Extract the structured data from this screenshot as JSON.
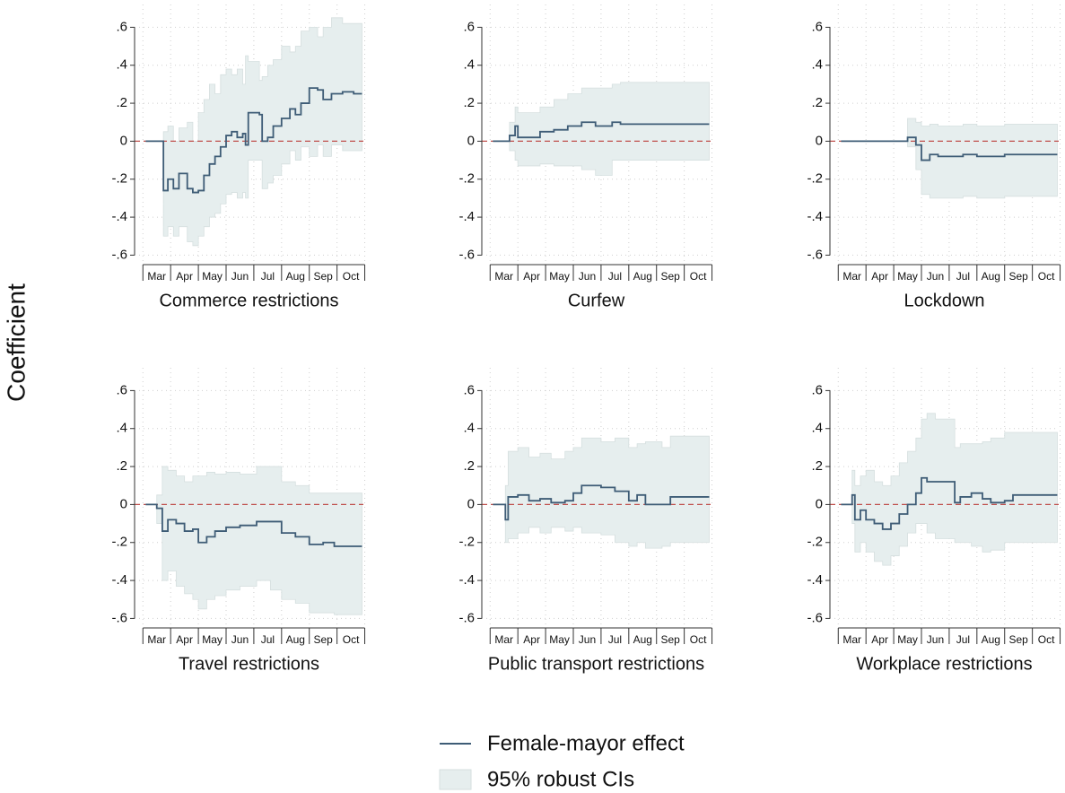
{
  "ylabel": "Coefficient",
  "chart_data": [
    {
      "type": "line",
      "title": "Commerce restrictions",
      "drawstyle": "steps-post",
      "grid": true,
      "hline": 0,
      "hline_color": "#c0504d",
      "xlim": [
        -0.3,
        7.95
      ],
      "ylim": [
        -0.65,
        0.72
      ],
      "xminorticks": [
        0,
        1,
        2,
        3,
        4,
        5,
        6,
        7,
        8
      ],
      "xticks": [
        {
          "value": 0.5,
          "label": "Mar"
        },
        {
          "value": 1.5,
          "label": "Apr"
        },
        {
          "value": 2.5,
          "label": "May"
        },
        {
          "value": 3.5,
          "label": "Jun"
        },
        {
          "value": 4.5,
          "label": "Jul"
        },
        {
          "value": 5.5,
          "label": "Aug"
        },
        {
          "value": 6.5,
          "label": "Sep"
        },
        {
          "value": 7.5,
          "label": "Oct"
        }
      ],
      "yticks": [
        {
          "value": 0.6,
          "label": ".6"
        },
        {
          "value": 0.4,
          "label": ".4"
        },
        {
          "value": 0.2,
          "label": ".2"
        },
        0,
        {
          "value": -0.2,
          "label": "-.2"
        },
        {
          "value": -0.4,
          "label": "-.4"
        },
        {
          "value": -0.6,
          "label": "-.6"
        }
      ],
      "x": [
        0.1,
        0.6,
        0.74,
        0.9,
        1.1,
        1.3,
        1.6,
        1.8,
        2.0,
        2.2,
        2.4,
        2.6,
        2.8,
        3.0,
        3.2,
        3.4,
        3.6,
        3.7,
        3.8,
        4.2,
        4.3,
        4.5,
        4.7,
        5.0,
        5.3,
        5.5,
        5.7,
        6.0,
        6.3,
        6.5,
        6.8,
        7.2,
        7.6,
        7.9
      ],
      "series": [
        {
          "name": "Female-mayor effect",
          "color": "#3e5c76",
          "values": [
            0,
            0,
            -0.26,
            -0.2,
            -0.25,
            -0.17,
            -0.25,
            -0.27,
            -0.26,
            -0.18,
            -0.12,
            -0.08,
            -0.03,
            0.03,
            0.05,
            0.02,
            0.04,
            -0.02,
            0.15,
            0.14,
            0,
            0.02,
            0.08,
            0.12,
            0.17,
            0.14,
            0.2,
            0.28,
            0.27,
            0.22,
            0.25,
            0.26,
            0.25,
            0.25
          ]
        },
        {
          "name": "95% robust CIs",
          "color": "#e6eeee",
          "lower": [
            0,
            0,
            -0.5,
            -0.45,
            -0.5,
            -0.45,
            -0.53,
            -0.55,
            -0.5,
            -0.45,
            -0.4,
            -0.38,
            -0.33,
            -0.28,
            -0.27,
            -0.3,
            -0.27,
            -0.3,
            -0.1,
            -0.1,
            -0.25,
            -0.22,
            -0.18,
            -0.12,
            -0.05,
            -0.1,
            -0.03,
            -0.08,
            -0.02,
            -0.08,
            -0.02,
            -0.05,
            -0.05,
            -0.05
          ],
          "upper": [
            0,
            0,
            0.05,
            0.08,
            0,
            0.07,
            0.1,
            0,
            0.15,
            0.22,
            0.3,
            0.25,
            0.35,
            0.38,
            0.35,
            0.38,
            0.3,
            0.45,
            0.42,
            0.32,
            0.34,
            0.4,
            0.43,
            0.5,
            0.47,
            0.5,
            0.58,
            0.6,
            0.55,
            0.6,
            0.65,
            0.62,
            0.62,
            0.62
          ]
        }
      ]
    },
    {
      "type": "line",
      "title": "Curfew",
      "drawstyle": "steps-post",
      "grid": true,
      "hline": 0,
      "hline_color": "#c0504d",
      "xlim": [
        -0.3,
        7.95
      ],
      "ylim": [
        -0.65,
        0.72
      ],
      "xminorticks": [
        0,
        1,
        2,
        3,
        4,
        5,
        6,
        7,
        8
      ],
      "xticks": [
        {
          "value": 0.5,
          "label": "Mar"
        },
        {
          "value": 1.5,
          "label": "Apr"
        },
        {
          "value": 2.5,
          "label": "May"
        },
        {
          "value": 3.5,
          "label": "Jun"
        },
        {
          "value": 4.5,
          "label": "Jul"
        },
        {
          "value": 5.5,
          "label": "Aug"
        },
        {
          "value": 6.5,
          "label": "Sep"
        },
        {
          "value": 7.5,
          "label": "Oct"
        }
      ],
      "yticks": [
        {
          "value": 0.6,
          "label": ".6"
        },
        {
          "value": 0.4,
          "label": ".4"
        },
        {
          "value": 0.2,
          "label": ".2"
        },
        0,
        {
          "value": -0.2,
          "label": "-.2"
        },
        {
          "value": -0.4,
          "label": "-.4"
        },
        {
          "value": -0.6,
          "label": "-.6"
        }
      ],
      "x": [
        0.1,
        0.6,
        0.7,
        0.9,
        1.0,
        1.8,
        2.3,
        2.8,
        3.3,
        3.8,
        4.4,
        4.7,
        7.9
      ],
      "series": [
        {
          "name": "Female-mayor effect",
          "color": "#3e5c76",
          "values": [
            0,
            0,
            0.03,
            0.08,
            0.02,
            0.05,
            0.06,
            0.08,
            0.1,
            0.08,
            0.1,
            0.09,
            0.09
          ]
        },
        {
          "name": "95% robust CIs",
          "color": "#e6eeee",
          "lower": [
            0,
            0,
            -0.05,
            -0.1,
            -0.13,
            -0.12,
            -0.13,
            -0.13,
            -0.15,
            -0.18,
            -0.1,
            -0.1,
            -0.1
          ],
          "upper": [
            0,
            0,
            0.1,
            0.18,
            0.15,
            0.18,
            0.22,
            0.25,
            0.28,
            0.28,
            0.3,
            0.31,
            0.31
          ]
        }
      ]
    },
    {
      "type": "line",
      "title": "Lockdown",
      "drawstyle": "steps-post",
      "grid": true,
      "hline": 0,
      "hline_color": "#c0504d",
      "xlim": [
        -0.3,
        7.95
      ],
      "ylim": [
        -0.65,
        0.72
      ],
      "xminorticks": [
        0,
        1,
        2,
        3,
        4,
        5,
        6,
        7,
        8
      ],
      "xticks": [
        {
          "value": 0.5,
          "label": "Mar"
        },
        {
          "value": 1.5,
          "label": "Apr"
        },
        {
          "value": 2.5,
          "label": "May"
        },
        {
          "value": 3.5,
          "label": "Jun"
        },
        {
          "value": 4.5,
          "label": "Jul"
        },
        {
          "value": 5.5,
          "label": "Aug"
        },
        {
          "value": 6.5,
          "label": "Sep"
        },
        {
          "value": 7.5,
          "label": "Oct"
        }
      ],
      "yticks": [
        {
          "value": 0.6,
          "label": ".6"
        },
        {
          "value": 0.4,
          "label": ".4"
        },
        {
          "value": 0.2,
          "label": ".2"
        },
        0,
        {
          "value": -0.2,
          "label": "-.2"
        },
        {
          "value": -0.4,
          "label": "-.4"
        },
        {
          "value": -0.6,
          "label": "-.6"
        }
      ],
      "x": [
        0.1,
        2.5,
        2.8,
        3.0,
        3.3,
        3.6,
        4.5,
        5.0,
        6.0,
        7.9
      ],
      "series": [
        {
          "name": "Female-mayor effect",
          "color": "#3e5c76",
          "values": [
            0,
            0.02,
            -0.02,
            -0.1,
            -0.07,
            -0.08,
            -0.07,
            -0.08,
            -0.07,
            -0.07
          ]
        },
        {
          "name": "95% robust CIs",
          "color": "#e6eeee",
          "lower": [
            0,
            -0.03,
            -0.15,
            -0.28,
            -0.3,
            -0.3,
            -0.29,
            -0.3,
            -0.29,
            -0.29
          ],
          "upper": [
            0,
            0.12,
            0.1,
            0.08,
            0.09,
            0.08,
            0.09,
            0.08,
            0.09,
            0.09
          ]
        }
      ]
    },
    {
      "type": "line",
      "title": "Travel restrictions",
      "drawstyle": "steps-post",
      "grid": true,
      "hline": 0,
      "hline_color": "#c0504d",
      "xlim": [
        -0.3,
        7.95
      ],
      "ylim": [
        -0.65,
        0.72
      ],
      "xminorticks": [
        0,
        1,
        2,
        3,
        4,
        5,
        6,
        7,
        8
      ],
      "xticks": [
        {
          "value": 0.5,
          "label": "Mar"
        },
        {
          "value": 1.5,
          "label": "Apr"
        },
        {
          "value": 2.5,
          "label": "May"
        },
        {
          "value": 3.5,
          "label": "Jun"
        },
        {
          "value": 4.5,
          "label": "Jul"
        },
        {
          "value": 5.5,
          "label": "Aug"
        },
        {
          "value": 6.5,
          "label": "Sep"
        },
        {
          "value": 7.5,
          "label": "Oct"
        }
      ],
      "yticks": [
        {
          "value": 0.6,
          "label": ".6"
        },
        {
          "value": 0.4,
          "label": ".4"
        },
        {
          "value": 0.2,
          "label": ".2"
        },
        0,
        {
          "value": -0.2,
          "label": "-.2"
        },
        {
          "value": -0.4,
          "label": "-.4"
        },
        {
          "value": -0.6,
          "label": "-.6"
        }
      ],
      "x": [
        0.1,
        0.5,
        0.7,
        0.9,
        1.2,
        1.5,
        1.8,
        2.0,
        2.3,
        2.6,
        3.0,
        3.5,
        4.1,
        4.6,
        5.0,
        5.5,
        6.0,
        6.5,
        6.9,
        7.9
      ],
      "series": [
        {
          "name": "Female-mayor effect",
          "color": "#3e5c76",
          "values": [
            0,
            -0.02,
            -0.14,
            -0.08,
            -0.1,
            -0.14,
            -0.13,
            -0.2,
            -0.17,
            -0.14,
            -0.12,
            -0.11,
            -0.09,
            -0.09,
            -0.15,
            -0.17,
            -0.21,
            -0.2,
            -0.22,
            -0.22
          ]
        },
        {
          "name": "95% robust CIs",
          "color": "#e6eeee",
          "lower": [
            0,
            -0.1,
            -0.4,
            -0.35,
            -0.43,
            -0.47,
            -0.5,
            -0.55,
            -0.5,
            -0.48,
            -0.45,
            -0.43,
            -0.4,
            -0.45,
            -0.5,
            -0.52,
            -0.57,
            -0.57,
            -0.58,
            -0.58
          ],
          "upper": [
            0,
            0.05,
            0.2,
            0.18,
            0.15,
            0.12,
            0.15,
            0.15,
            0.17,
            0.16,
            0.17,
            0.16,
            0.2,
            0.2,
            0.12,
            0.1,
            0.06,
            0.06,
            0.06,
            0.06
          ]
        }
      ]
    },
    {
      "type": "line",
      "title": "Public transport restrictions",
      "drawstyle": "steps-post",
      "grid": true,
      "hline": 0,
      "hline_color": "#c0504d",
      "xlim": [
        -0.3,
        7.95
      ],
      "ylim": [
        -0.65,
        0.72
      ],
      "xminorticks": [
        0,
        1,
        2,
        3,
        4,
        5,
        6,
        7,
        8
      ],
      "xticks": [
        {
          "value": 0.5,
          "label": "Mar"
        },
        {
          "value": 1.5,
          "label": "Apr"
        },
        {
          "value": 2.5,
          "label": "May"
        },
        {
          "value": 3.5,
          "label": "Jun"
        },
        {
          "value": 4.5,
          "label": "Jul"
        },
        {
          "value": 5.5,
          "label": "Aug"
        },
        {
          "value": 6.5,
          "label": "Sep"
        },
        {
          "value": 7.5,
          "label": "Oct"
        }
      ],
      "yticks": [
        {
          "value": 0.6,
          "label": ".6"
        },
        {
          "value": 0.4,
          "label": ".4"
        },
        {
          "value": 0.2,
          "label": ".2"
        },
        0,
        {
          "value": -0.2,
          "label": "-.2"
        },
        {
          "value": -0.4,
          "label": "-.4"
        },
        {
          "value": -0.6,
          "label": "-.6"
        }
      ],
      "x": [
        0.1,
        0.5,
        0.55,
        0.65,
        1.0,
        1.4,
        1.8,
        2.2,
        2.7,
        3.0,
        3.3,
        4.0,
        4.5,
        5.0,
        5.3,
        5.6,
        6.2,
        6.5,
        7.9
      ],
      "series": [
        {
          "name": "Female-mayor effect",
          "color": "#3e5c76",
          "values": [
            0,
            0,
            -0.08,
            0.04,
            0.05,
            0.02,
            0.03,
            0.01,
            0.02,
            0.06,
            0.1,
            0.09,
            0.07,
            0.02,
            0.05,
            0,
            0,
            0.04,
            0.04
          ]
        },
        {
          "name": "95% robust CIs",
          "color": "#e6eeee",
          "lower": [
            0,
            0,
            -0.2,
            -0.18,
            -0.15,
            -0.12,
            -0.15,
            -0.12,
            -0.14,
            -0.12,
            -0.15,
            -0.16,
            -0.2,
            -0.22,
            -0.2,
            -0.23,
            -0.22,
            -0.2,
            -0.2
          ],
          "upper": [
            0,
            0,
            0.1,
            0.28,
            0.3,
            0.25,
            0.27,
            0.24,
            0.28,
            0.3,
            0.35,
            0.33,
            0.35,
            0.3,
            0.32,
            0.33,
            0.3,
            0.36,
            0.36
          ]
        }
      ]
    },
    {
      "type": "line",
      "title": "Workplace restrictions",
      "drawstyle": "steps-post",
      "grid": true,
      "hline": 0,
      "hline_color": "#c0504d",
      "xlim": [
        -0.3,
        7.95
      ],
      "ylim": [
        -0.65,
        0.72
      ],
      "xminorticks": [
        0,
        1,
        2,
        3,
        4,
        5,
        6,
        7,
        8
      ],
      "xticks": [
        {
          "value": 0.5,
          "label": "Mar"
        },
        {
          "value": 1.5,
          "label": "Apr"
        },
        {
          "value": 2.5,
          "label": "May"
        },
        {
          "value": 3.5,
          "label": "Jun"
        },
        {
          "value": 4.5,
          "label": "Jul"
        },
        {
          "value": 5.5,
          "label": "Aug"
        },
        {
          "value": 6.5,
          "label": "Sep"
        },
        {
          "value": 7.5,
          "label": "Oct"
        }
      ],
      "yticks": [
        {
          "value": 0.6,
          "label": ".6"
        },
        {
          "value": 0.4,
          "label": ".4"
        },
        {
          "value": 0.2,
          "label": ".2"
        },
        0,
        {
          "value": -0.2,
          "label": "-.2"
        },
        {
          "value": -0.4,
          "label": "-.4"
        },
        {
          "value": -0.6,
          "label": "-.6"
        }
      ],
      "x": [
        0.1,
        0.5,
        0.6,
        0.8,
        1.0,
        1.3,
        1.6,
        1.9,
        2.2,
        2.5,
        2.8,
        3.0,
        3.2,
        3.5,
        4.2,
        4.4,
        4.8,
        5.2,
        5.5,
        6.0,
        6.3,
        7.9
      ],
      "series": [
        {
          "name": "Female-mayor effect",
          "color": "#3e5c76",
          "values": [
            0,
            0.05,
            -0.08,
            -0.03,
            -0.08,
            -0.1,
            -0.13,
            -0.1,
            -0.05,
            0,
            0.06,
            0.14,
            0.12,
            0.12,
            0.01,
            0.04,
            0.06,
            0.03,
            0.01,
            0.02,
            0.05,
            0.05
          ]
        },
        {
          "name": "95% robust CIs",
          "color": "#e6eeee",
          "lower": [
            0,
            -0.1,
            -0.25,
            -0.2,
            -0.25,
            -0.3,
            -0.32,
            -0.27,
            -0.22,
            -0.15,
            -0.1,
            -0.1,
            -0.15,
            -0.18,
            -0.2,
            -0.2,
            -0.22,
            -0.25,
            -0.24,
            -0.2,
            -0.2,
            -0.2
          ],
          "upper": [
            0,
            0.18,
            0.1,
            0.15,
            0.18,
            0.12,
            0.1,
            0.15,
            0.22,
            0.28,
            0.35,
            0.45,
            0.48,
            0.45,
            0.3,
            0.32,
            0.32,
            0.33,
            0.35,
            0.38,
            0.38,
            0.38
          ]
        }
      ]
    }
  ]
}
